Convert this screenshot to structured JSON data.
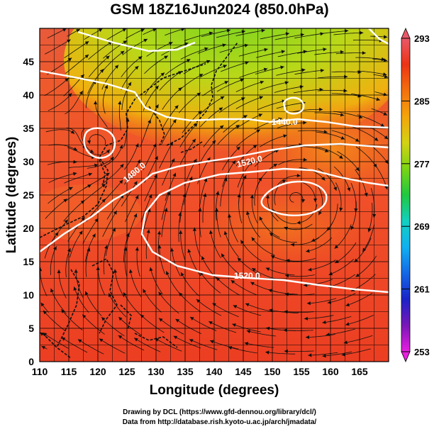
{
  "title": "GSM 18Z16Jun2024 (850.0hPa)",
  "axes": {
    "xlabel": "Longitude (degrees)",
    "ylabel": "Latitude  (degrees)",
    "xticks": [
      "110",
      "115",
      "120",
      "125",
      "130",
      "135",
      "140",
      "145",
      "150",
      "155",
      "160",
      "165"
    ],
    "yticks": [
      "0",
      "5",
      "10",
      "15",
      "20",
      "25",
      "30",
      "35",
      "40",
      "45"
    ],
    "xlim": [
      110,
      170
    ],
    "ylim": [
      0,
      50
    ]
  },
  "colorbar": {
    "min": 253,
    "max": 293,
    "tick_labels": [
      "293",
      "285",
      "277",
      "269",
      "261",
      "253"
    ],
    "colors": [
      "#e81ee0",
      "#7a17b8",
      "#1a22c8",
      "#1468e6",
      "#10b0f0",
      "#12d0c0",
      "#20c840",
      "#7ad414",
      "#d4d214",
      "#f4a40c",
      "#f4700e",
      "#ec3416",
      "#e85868"
    ]
  },
  "contours": [
    {
      "label": "1440.0"
    },
    {
      "label": "1480.0"
    },
    {
      "label": "1520.0"
    },
    {
      "label": "1520.0"
    }
  ],
  "credits": {
    "line1": "Drawing by DCL (https://www.gfd-dennou.org/library/dcl/)",
    "line2": "Data from http://database.rish.kyoto-u.ac.jp/arch/jmadata/"
  }
}
